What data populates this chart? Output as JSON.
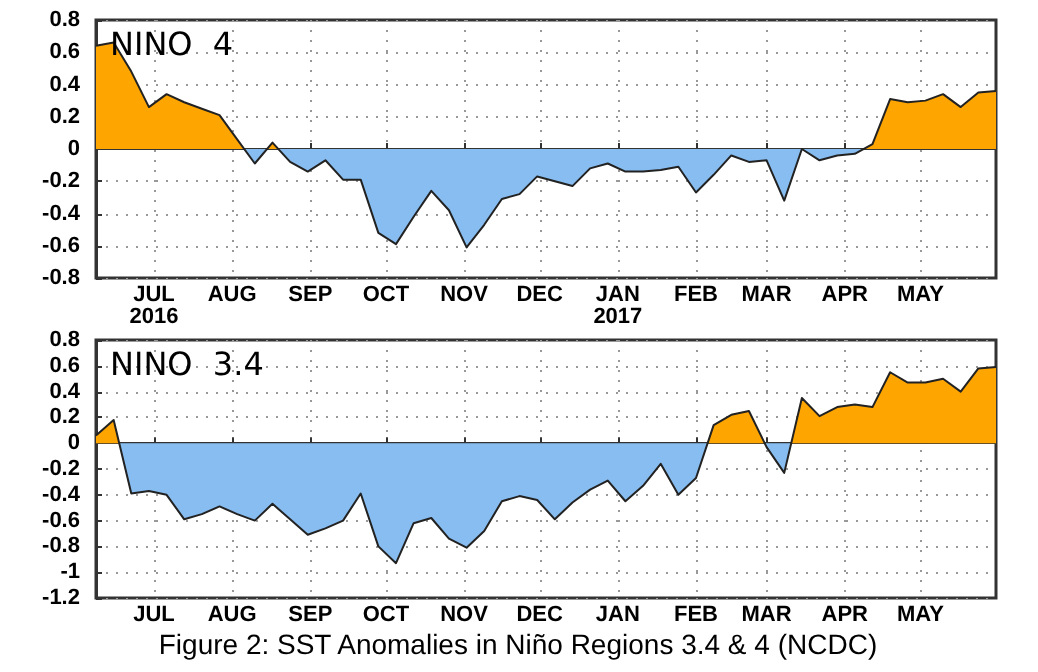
{
  "chart_data": [
    {
      "type": "area",
      "title": "NINO  4",
      "xlim": [
        "2016-06-08",
        "2017-05-31"
      ],
      "ylim": [
        -0.8,
        0.8
      ],
      "yticks": [
        -0.8,
        -0.6,
        -0.4,
        -0.2,
        0,
        0.2,
        0.4,
        0.6,
        0.8
      ],
      "grid": true,
      "line_style": "solid",
      "marker": "none",
      "xticks": [
        {
          "value": "2016-07-01",
          "label": "JUL\n2016"
        },
        {
          "value": "2016-08-01",
          "label": "AUG"
        },
        {
          "value": "2016-09-01",
          "label": "SEP"
        },
        {
          "value": "2016-10-01",
          "label": "OCT"
        },
        {
          "value": "2016-11-01",
          "label": "NOV"
        },
        {
          "value": "2016-12-01",
          "label": "DEC"
        },
        {
          "value": "2017-01-01",
          "label": "JAN\n2017"
        },
        {
          "value": "2017-02-01",
          "label": "FEB"
        },
        {
          "value": "2017-03-01",
          "label": "MAR"
        },
        {
          "value": "2017-04-01",
          "label": "APR"
        },
        {
          "value": "2017-05-01",
          "label": "MAY"
        }
      ],
      "x": [
        "2016-06-08",
        "2016-06-15",
        "2016-06-22",
        "2016-06-29",
        "2016-07-06",
        "2016-07-13",
        "2016-07-20",
        "2016-07-27",
        "2016-08-03",
        "2016-08-10",
        "2016-08-17",
        "2016-08-24",
        "2016-08-31",
        "2016-09-07",
        "2016-09-14",
        "2016-09-21",
        "2016-09-28",
        "2016-10-05",
        "2016-10-12",
        "2016-10-19",
        "2016-10-26",
        "2016-11-02",
        "2016-11-09",
        "2016-11-16",
        "2016-11-23",
        "2016-11-30",
        "2016-12-07",
        "2016-12-14",
        "2016-12-21",
        "2016-12-28",
        "2017-01-04",
        "2017-01-11",
        "2017-01-18",
        "2017-01-25",
        "2017-02-01",
        "2017-02-08",
        "2017-02-15",
        "2017-02-22",
        "2017-03-01",
        "2017-03-08",
        "2017-03-15",
        "2017-03-22",
        "2017-03-29",
        "2017-04-05",
        "2017-04-12",
        "2017-04-19",
        "2017-04-26",
        "2017-05-03",
        "2017-05-10",
        "2017-05-17",
        "2017-05-24",
        "2017-05-31"
      ],
      "series": [
        {
          "color": "#222222",
          "colors": [
            "#ffa500",
            "#ffa500",
            "#ffa500",
            "#ffa500",
            "#ffa500",
            "#ffa500",
            "#ffa500",
            "#ffa500",
            "#ffa500",
            "#87bdf0",
            "#ffa500",
            "#87bdf0",
            "#87bdf0",
            "#87bdf0",
            "#87bdf0",
            "#87bdf0",
            "#87bdf0",
            "#87bdf0",
            "#87bdf0",
            "#87bdf0",
            "#87bdf0",
            "#87bdf0",
            "#87bdf0",
            "#87bdf0",
            "#87bdf0",
            "#87bdf0",
            "#87bdf0",
            "#87bdf0",
            "#87bdf0",
            "#87bdf0",
            "#87bdf0",
            "#87bdf0",
            "#87bdf0",
            "#87bdf0",
            "#87bdf0",
            "#87bdf0",
            "#87bdf0",
            "#87bdf0",
            "#87bdf0",
            "#87bdf0",
            "#ffa500",
            "#87bdf0",
            "#87bdf0",
            "#87bdf0",
            "#ffa500",
            "#ffa500",
            "#ffa500",
            "#ffa500",
            "#ffa500",
            "#ffa500",
            "#ffa500",
            "#ffa500"
          ],
          "values": [
            0.64,
            0.66,
            0.48,
            0.26,
            0.34,
            0.29,
            0.25,
            0.21,
            0.06,
            -0.09,
            0.04,
            -0.08,
            -0.14,
            -0.07,
            -0.19,
            -0.19,
            -0.52,
            -0.59,
            -0.42,
            -0.26,
            -0.38,
            -0.61,
            -0.47,
            -0.31,
            -0.28,
            -0.17,
            -0.2,
            -0.23,
            -0.12,
            -0.09,
            -0.14,
            -0.14,
            -0.13,
            -0.11,
            -0.27,
            -0.16,
            -0.04,
            -0.08,
            -0.07,
            -0.32,
            0,
            -0.07,
            -0.04,
            -0.03,
            0.03,
            0.31,
            0.29,
            0.3,
            0.34,
            0.26,
            0.35,
            0.36
          ]
        }
      ]
    },
    {
      "type": "area",
      "title": "NINO  3.4",
      "xlim": [
        "2016-06-08",
        "2017-05-31"
      ],
      "ylim": [
        -1.2,
        0.8
      ],
      "yticks": [
        -1.2,
        -1,
        -0.8,
        -0.6,
        -0.4,
        -0.2,
        0,
        0.2,
        0.4,
        0.6,
        0.8
      ],
      "grid": true,
      "line_style": "solid",
      "marker": "none",
      "annotations": [
        "Figure 2: SST Anomalies in Niño Regions 3.4 & 4 (NCDC)"
      ],
      "xticks": [
        {
          "value": "2016-07-01",
          "label": "JUL"
        },
        {
          "value": "2016-08-01",
          "label": "AUG"
        },
        {
          "value": "2016-09-01",
          "label": "SEP"
        },
        {
          "value": "2016-10-01",
          "label": "OCT"
        },
        {
          "value": "2016-11-01",
          "label": "NOV"
        },
        {
          "value": "2016-12-01",
          "label": "DEC"
        },
        {
          "value": "2017-01-01",
          "label": "JAN"
        },
        {
          "value": "2017-02-01",
          "label": "FEB"
        },
        {
          "value": "2017-03-01",
          "label": "MAR"
        },
        {
          "value": "2017-04-01",
          "label": "APR"
        },
        {
          "value": "2017-05-01",
          "label": "MAY"
        }
      ],
      "x": [
        "2016-06-08",
        "2016-06-15",
        "2016-06-22",
        "2016-06-29",
        "2016-07-06",
        "2016-07-13",
        "2016-07-20",
        "2016-07-27",
        "2016-08-03",
        "2016-08-10",
        "2016-08-17",
        "2016-08-24",
        "2016-08-31",
        "2016-09-07",
        "2016-09-14",
        "2016-09-21",
        "2016-09-28",
        "2016-10-05",
        "2016-10-12",
        "2016-10-19",
        "2016-10-26",
        "2016-11-02",
        "2016-11-09",
        "2016-11-16",
        "2016-11-23",
        "2016-11-30",
        "2016-12-07",
        "2016-12-14",
        "2016-12-21",
        "2016-12-28",
        "2017-01-04",
        "2017-01-11",
        "2017-01-18",
        "2017-01-25",
        "2017-02-01",
        "2017-02-08",
        "2017-02-15",
        "2017-02-22",
        "2017-03-01",
        "2017-03-08",
        "2017-03-15",
        "2017-03-22",
        "2017-03-29",
        "2017-04-05",
        "2017-04-12",
        "2017-04-19",
        "2017-04-26",
        "2017-05-03",
        "2017-05-10",
        "2017-05-17",
        "2017-05-24",
        "2017-05-31"
      ],
      "series": [
        {
          "color": "#222222",
          "colors": [
            "#ffa500",
            "#ffa500",
            "#87bdf0",
            "#87bdf0",
            "#87bdf0",
            "#87bdf0",
            "#87bdf0",
            "#87bdf0",
            "#87bdf0",
            "#87bdf0",
            "#87bdf0",
            "#87bdf0",
            "#87bdf0",
            "#87bdf0",
            "#87bdf0",
            "#87bdf0",
            "#87bdf0",
            "#87bdf0",
            "#87bdf0",
            "#87bdf0",
            "#87bdf0",
            "#87bdf0",
            "#87bdf0",
            "#87bdf0",
            "#87bdf0",
            "#87bdf0",
            "#87bdf0",
            "#87bdf0",
            "#87bdf0",
            "#87bdf0",
            "#87bdf0",
            "#87bdf0",
            "#87bdf0",
            "#87bdf0",
            "#87bdf0",
            "#ffa500",
            "#ffa500",
            "#ffa500",
            "#87bdf0",
            "#87bdf0",
            "#ffa500",
            "#ffa500",
            "#ffa500",
            "#ffa500",
            "#ffa500",
            "#ffa500",
            "#ffa500",
            "#ffa500",
            "#ffa500",
            "#ffa500",
            "#ffa500",
            "#ffa500"
          ],
          "values": [
            0.06,
            0.18,
            -0.39,
            -0.37,
            -0.4,
            -0.59,
            -0.55,
            -0.49,
            -0.55,
            -0.6,
            -0.47,
            -0.59,
            -0.71,
            -0.66,
            -0.6,
            -0.39,
            -0.8,
            -0.93,
            -0.62,
            -0.58,
            -0.74,
            -0.81,
            -0.68,
            -0.45,
            -0.41,
            -0.44,
            -0.59,
            -0.46,
            -0.36,
            -0.29,
            -0.45,
            -0.33,
            -0.16,
            -0.4,
            -0.27,
            0.14,
            0.22,
            0.25,
            -0.03,
            -0.23,
            0.35,
            0.21,
            0.28,
            0.3,
            0.28,
            0.55,
            0.47,
            0.47,
            0.5,
            0.4,
            0.58,
            0.59
          ]
        }
      ]
    }
  ]
}
